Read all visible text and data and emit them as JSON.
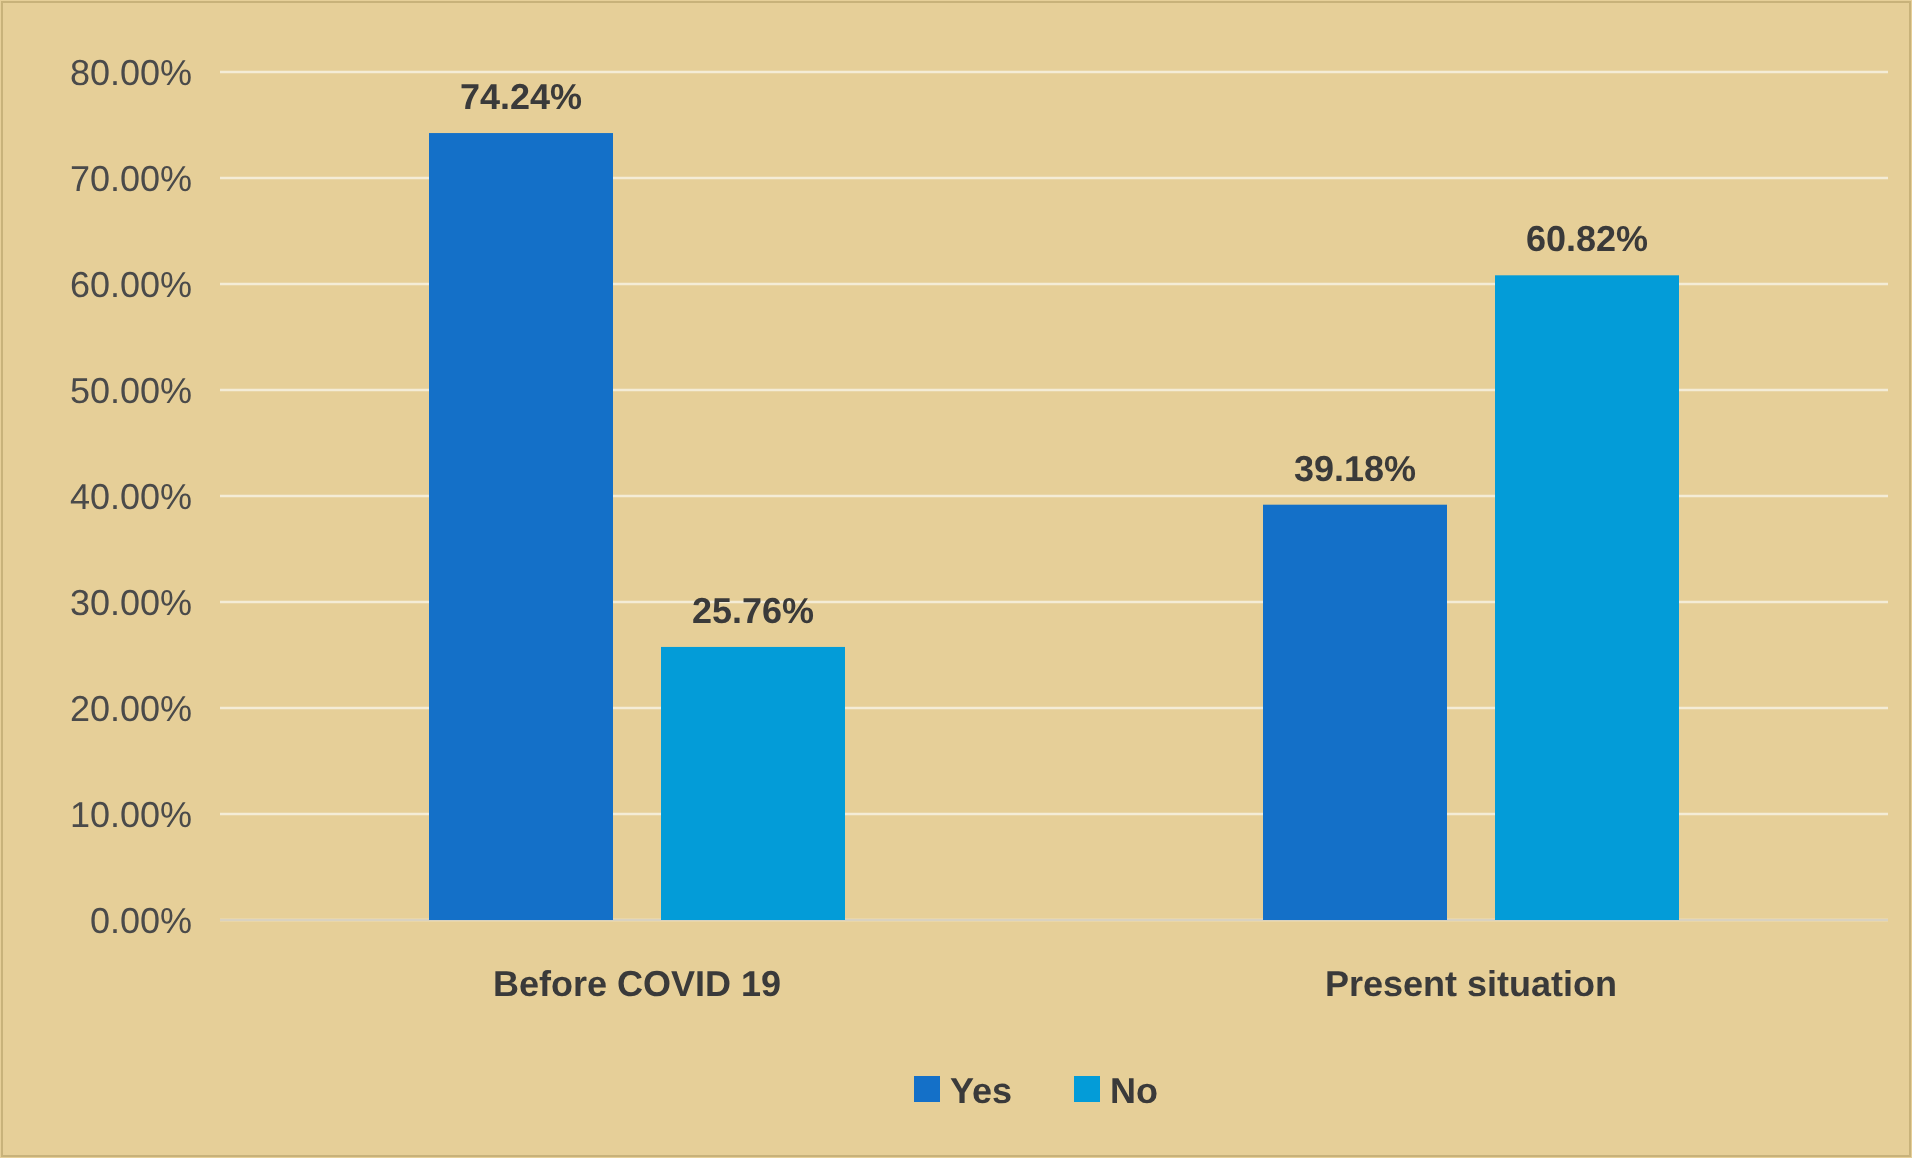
{
  "chart_data": {
    "type": "bar",
    "categories": [
      "Before COVID 19",
      "Present situation"
    ],
    "series": [
      {
        "name": "Yes",
        "color": "#1470c8",
        "values": [
          74.24,
          39.18
        ],
        "value_labels": [
          "74.24%",
          "39.18%"
        ]
      },
      {
        "name": "No",
        "color": "#039cd8",
        "values": [
          25.76,
          60.82
        ],
        "value_labels": [
          "25.76%",
          "60.82%"
        ]
      }
    ],
    "ylim": [
      0,
      80
    ],
    "yticks": [
      {
        "value": 0,
        "label": "0.00%"
      },
      {
        "value": 10,
        "label": "10.00%"
      },
      {
        "value": 20,
        "label": "20.00%"
      },
      {
        "value": 30,
        "label": "30.00%"
      },
      {
        "value": 40,
        "label": "40.00%"
      },
      {
        "value": 50,
        "label": "50.00%"
      },
      {
        "value": 60,
        "label": "60.00%"
      },
      {
        "value": 70,
        "label": "70.00%"
      },
      {
        "value": 80,
        "label": "80.00%"
      }
    ],
    "grid": "y",
    "legend": "bottom"
  }
}
